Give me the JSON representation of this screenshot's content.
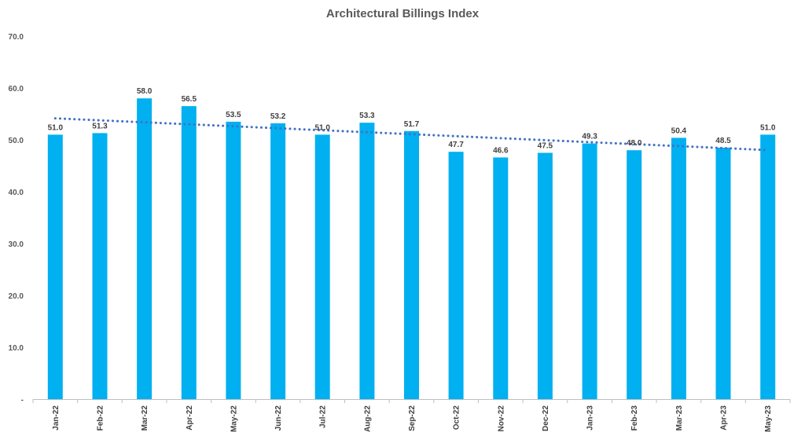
{
  "chart_data": {
    "type": "bar",
    "title": "Architectural Billings Index",
    "xlabel": "",
    "ylabel": "",
    "categories": [
      "Jan-22",
      "Feb-22",
      "Mar-22",
      "Apr-22",
      "May-22",
      "Jun-22",
      "Jul-22",
      "Aug-22",
      "Sep-22",
      "Oct-22",
      "Nov-22",
      "Dec-22",
      "Jan-23",
      "Feb-23",
      "Mar-23",
      "Apr-23",
      "May-23"
    ],
    "values": [
      51.0,
      51.3,
      58.0,
      56.5,
      53.5,
      53.2,
      51.0,
      53.3,
      51.7,
      47.7,
      46.6,
      47.5,
      49.3,
      48.0,
      50.4,
      48.5,
      51.0
    ],
    "data_labels": [
      "51.0",
      "51.3",
      "58.0",
      "56.5",
      "53.5",
      "53.2",
      "51.0",
      "53.3",
      "51.7",
      "47.7",
      "46.6",
      "47.5",
      "49.3",
      "48.0",
      "50.4",
      "48.5",
      "51.0"
    ],
    "ylim": [
      0,
      70
    ],
    "yticks": [
      0,
      10,
      20,
      30,
      40,
      50,
      60,
      70
    ],
    "ytick_labels": [
      "-",
      "10.0",
      "20.0",
      "30.0",
      "40.0",
      "50.0",
      "60.0",
      "70.0"
    ],
    "grid": false,
    "legend": "none",
    "trendline": {
      "type": "linear",
      "style": "dotted"
    },
    "colors": {
      "bar": "#00B0F0",
      "trendline": "#4472C4",
      "axis": "#BFBFBF"
    }
  }
}
